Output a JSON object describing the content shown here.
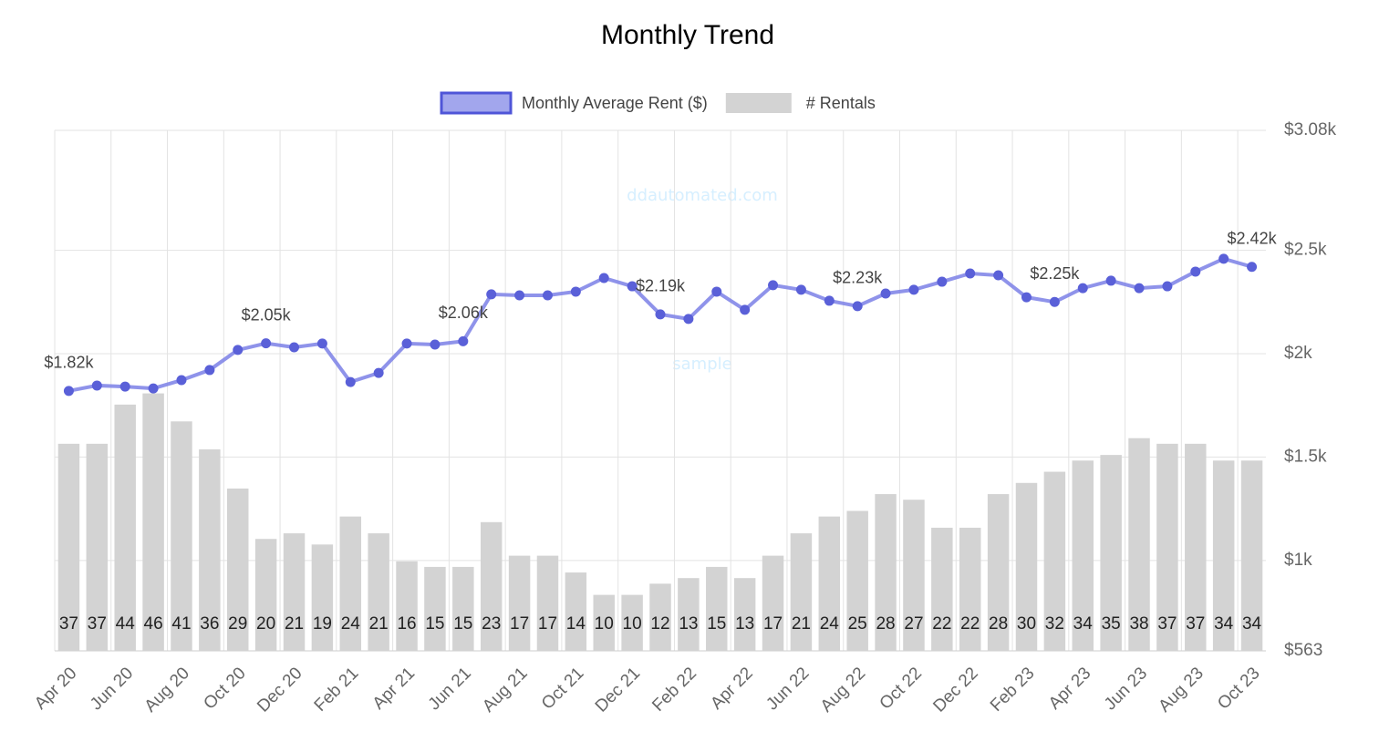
{
  "chart_data": {
    "type": "bar-line",
    "title": "Monthly Trend",
    "watermark": [
      "ddautomated.com",
      "sample"
    ],
    "categories": [
      "Apr 20",
      null,
      "Jun 20",
      null,
      "Aug 20",
      null,
      "Oct 20",
      null,
      "Dec 20",
      null,
      "Feb 21",
      null,
      "Apr 21",
      null,
      "Jun 21",
      null,
      "Aug 21",
      null,
      "Oct 21",
      null,
      "Dec 21",
      null,
      "Feb 22",
      null,
      "Apr 22",
      null,
      "Jun 22",
      null,
      "Aug 22",
      null,
      "Oct 22",
      null,
      "Dec 22",
      null,
      "Feb 23",
      null,
      "Apr 23",
      null,
      "Jun 23",
      null,
      "Aug 23",
      null,
      "Oct 23"
    ],
    "series": [
      {
        "name": "Monthly Average Rent ($)",
        "type": "line",
        "color": "#7b80e6",
        "axis": "y",
        "values": [
          1820,
          1846,
          1841,
          1832,
          1872,
          1921,
          2018,
          2050,
          2031,
          2049,
          1863,
          1907,
          2049,
          2044,
          2060,
          2287,
          2282,
          2282,
          2300,
          2366,
          2326,
          2190,
          2168,
          2300,
          2212,
          2331,
          2309,
          2256,
          2230,
          2291,
          2309,
          2348,
          2388,
          2379,
          2273,
          2250,
          2317,
          2353,
          2317,
          2326,
          2397,
          2459,
          2420
        ],
        "value_labels": [
          "$1.82k",
          null,
          null,
          null,
          null,
          null,
          null,
          "$2.05k",
          null,
          null,
          null,
          null,
          null,
          null,
          "$2.06k",
          null,
          null,
          null,
          null,
          null,
          null,
          "$2.19k",
          null,
          null,
          null,
          null,
          null,
          null,
          "$2.23k",
          null,
          null,
          null,
          null,
          null,
          null,
          "$2.25k",
          null,
          null,
          null,
          null,
          null,
          null,
          "$2.42k"
        ]
      },
      {
        "name": "# Rentals",
        "type": "bar",
        "color": "#d3d3d3",
        "axis": "y2",
        "values": [
          37,
          37,
          44,
          46,
          41,
          36,
          29,
          20,
          21,
          19,
          24,
          21,
          16,
          15,
          15,
          23,
          17,
          17,
          14,
          10,
          10,
          12,
          13,
          15,
          13,
          17,
          21,
          24,
          25,
          28,
          27,
          22,
          22,
          28,
          30,
          32,
          34,
          35,
          38,
          37,
          37,
          34,
          34
        ]
      }
    ],
    "ylim": [
      563,
      3080
    ],
    "yticks": [
      {
        "value": 563,
        "label": "$563"
      },
      {
        "value": 1000,
        "label": "$1k"
      },
      {
        "value": 1500,
        "label": "$1.5k"
      },
      {
        "value": 2000,
        "label": "$2k"
      },
      {
        "value": 2500,
        "label": "$2.5k"
      },
      {
        "value": 3080,
        "label": "$3.08k"
      }
    ],
    "y2lim": [
      0,
      93
    ],
    "grid": true
  }
}
